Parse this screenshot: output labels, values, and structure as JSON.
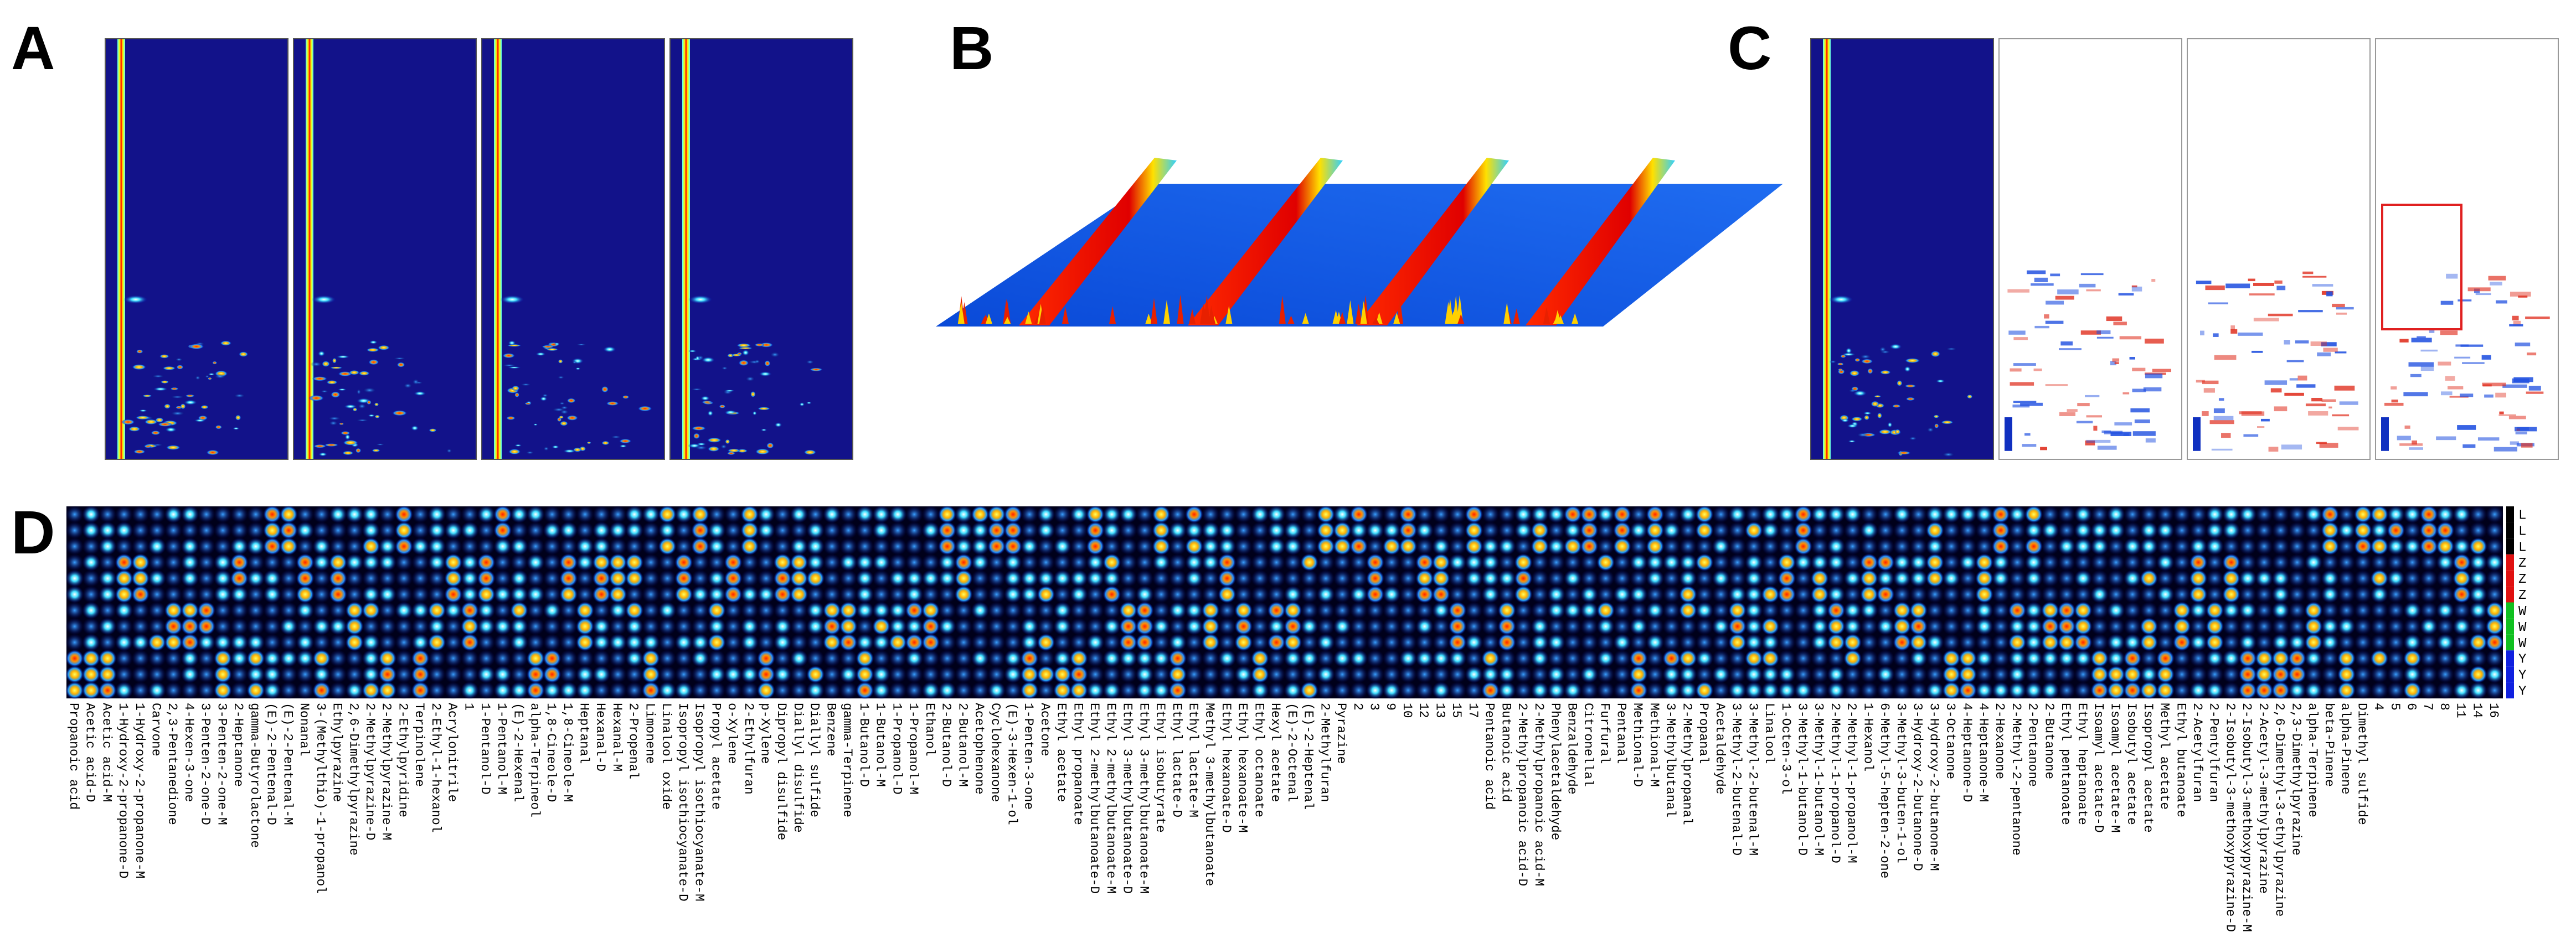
{
  "panels": [
    {
      "label": "A"
    },
    {
      "label": "B"
    },
    {
      "label": "C"
    },
    {
      "label": "D"
    }
  ],
  "fingerprint": {
    "rows": [
      "L",
      "L",
      "L",
      "Z",
      "Z",
      "Z",
      "W",
      "W",
      "W",
      "Y",
      "Y",
      "Y"
    ],
    "compounds": [
      "Propanoic acid",
      "Acetic acid-D",
      "Acetic acid-M",
      "1-Hydroxy-2-propanone-D",
      "1-Hydroxy-2-propanone-M",
      "Carvone",
      "2,3-Pentanedione",
      "4-Hexen-3-one",
      "3-Penten-2-one-D",
      "3-Penten-2-one-M",
      "2-Heptanone",
      "gamma-Butyrolactone",
      "(E)-2-Pentenal-D",
      "(E)-2-Pentenal-M",
      "Nonanal",
      "3-(Methylthio)-1-propanol",
      "Ethylpyrazine",
      "2,6-Dimethylpyrazine",
      "2-Methylpyrazine-D",
      "2-Methylpyrazine-M",
      "2-Ethylpyridine",
      "Terpinolene",
      "2-Ethyl-1-hexanol",
      "Acrylonitrile",
      "1",
      "1-Pentanol-D",
      "1-Pentanol-M",
      "(E)-2-Hexenal",
      "alpha-Terpineol",
      "1,8-Cineole-D",
      "1,8-Cineole-M",
      "Heptanal",
      "Hexanal-D",
      "Hexanal-M",
      "2-Propenal",
      "Limonene",
      "Linalool oxide",
      "Isopropyl isothiocyanate-D",
      "Isopropyl isothiocyanate-M",
      "Propyl acetate",
      "o-Xylene",
      "2-Ethylfuran",
      "p-Xylene",
      "Dipropyl disulfide",
      "Diallyl disulfide",
      "Diallyl sulfide",
      "Benzene",
      "gamma-Terpinene",
      "1-Butanol-D",
      "1-Butanol-M",
      "1-Propanol-D",
      "1-Propanol-M",
      "Ethanol",
      "2-Butanol-D",
      "2-Butanol-M",
      "Acetophenone",
      "Cyclohexanone",
      "(E)-3-Hexen-1-ol",
      "1-Penten-3-one",
      "Acetone",
      "Ethyl acetate",
      "Ethyl propanoate",
      "Ethyl 2-methylbutanoate-D",
      "Ethyl 2-methylbutanoate-M",
      "Ethyl 3-methylbutanoate-D",
      "Ethyl 3-methylbutanoate-M",
      "Ethyl isobutyrate",
      "Ethyl lactate-D",
      "Ethyl lactate-M",
      "Methyl 3-methylbutanoate",
      "Ethyl hexanoate-D",
      "Ethyl hexanoate-M",
      "Ethyl octanoate",
      "Hexyl acetate",
      "(E)-2-Octenal",
      "(E)-2-Heptenal",
      "2-Methylfuran",
      "Pyrazine",
      "2",
      "3",
      "9",
      "10",
      "12",
      "13",
      "15",
      "17",
      "Pentanoic acid",
      "Butanoic acid",
      "2-Methylpropanoic acid-D",
      "2-Methylpropanoic acid-M",
      "Phenylacetaldehyde",
      "Benzaldehyde",
      "Citronellal",
      "Furfural",
      "Pentanal",
      "Methional-D",
      "Methional-M",
      "3-Methylbutanal",
      "2-Methylpropanal",
      "Propanal",
      "Acetaldehyde",
      "3-Methyl-2-butenal-D",
      "3-Methyl-2-butenal-M",
      "Linalool",
      "1-Octen-3-ol",
      "3-Methyl-1-butanol-D",
      "3-Methyl-1-butanol-M",
      "2-Methyl-1-propanol-D",
      "2-Methyl-1-propanol-M",
      "1-Hexanol",
      "6-Methyl-5-hepten-2-one",
      "3-Methyl-3-buten-1-ol",
      "3-Hydroxy-2-butanone-D",
      "3-Hydroxy-2-butanone-M",
      "3-Octanone",
      "4-Heptanone-D",
      "4-Heptanone-M",
      "2-Hexanone",
      "2-Methyl-2-pentanone",
      "2-Pentanone",
      "2-Butanone",
      "Ethyl pentanoate",
      "Ethyl heptanoate",
      "Isoamyl acetate-D",
      "Isoamyl acetate-M",
      "Isobutyl acetate",
      "Isopropyl acetate",
      "Methyl acetate",
      "Ethyl butanoate",
      "2-Acetylfuran",
      "2-Pentylfuran",
      "2-Isobutyl-3-methoxypyrazine-D",
      "2-Isobutyl-3-methoxypyrazine-M",
      "2-Acetyl-3-methylpyrazine",
      "2,6-Dimethyl-3-ethylpyrazine",
      "2,3-Dimethylpyrazine",
      "alpha-Terpinene",
      "beta-Pinene",
      "alpha-Pinene",
      "Dimethyl sulfide",
      "4",
      "5",
      "6",
      "7",
      "8",
      "11",
      "14",
      "16"
    ]
  }
}
